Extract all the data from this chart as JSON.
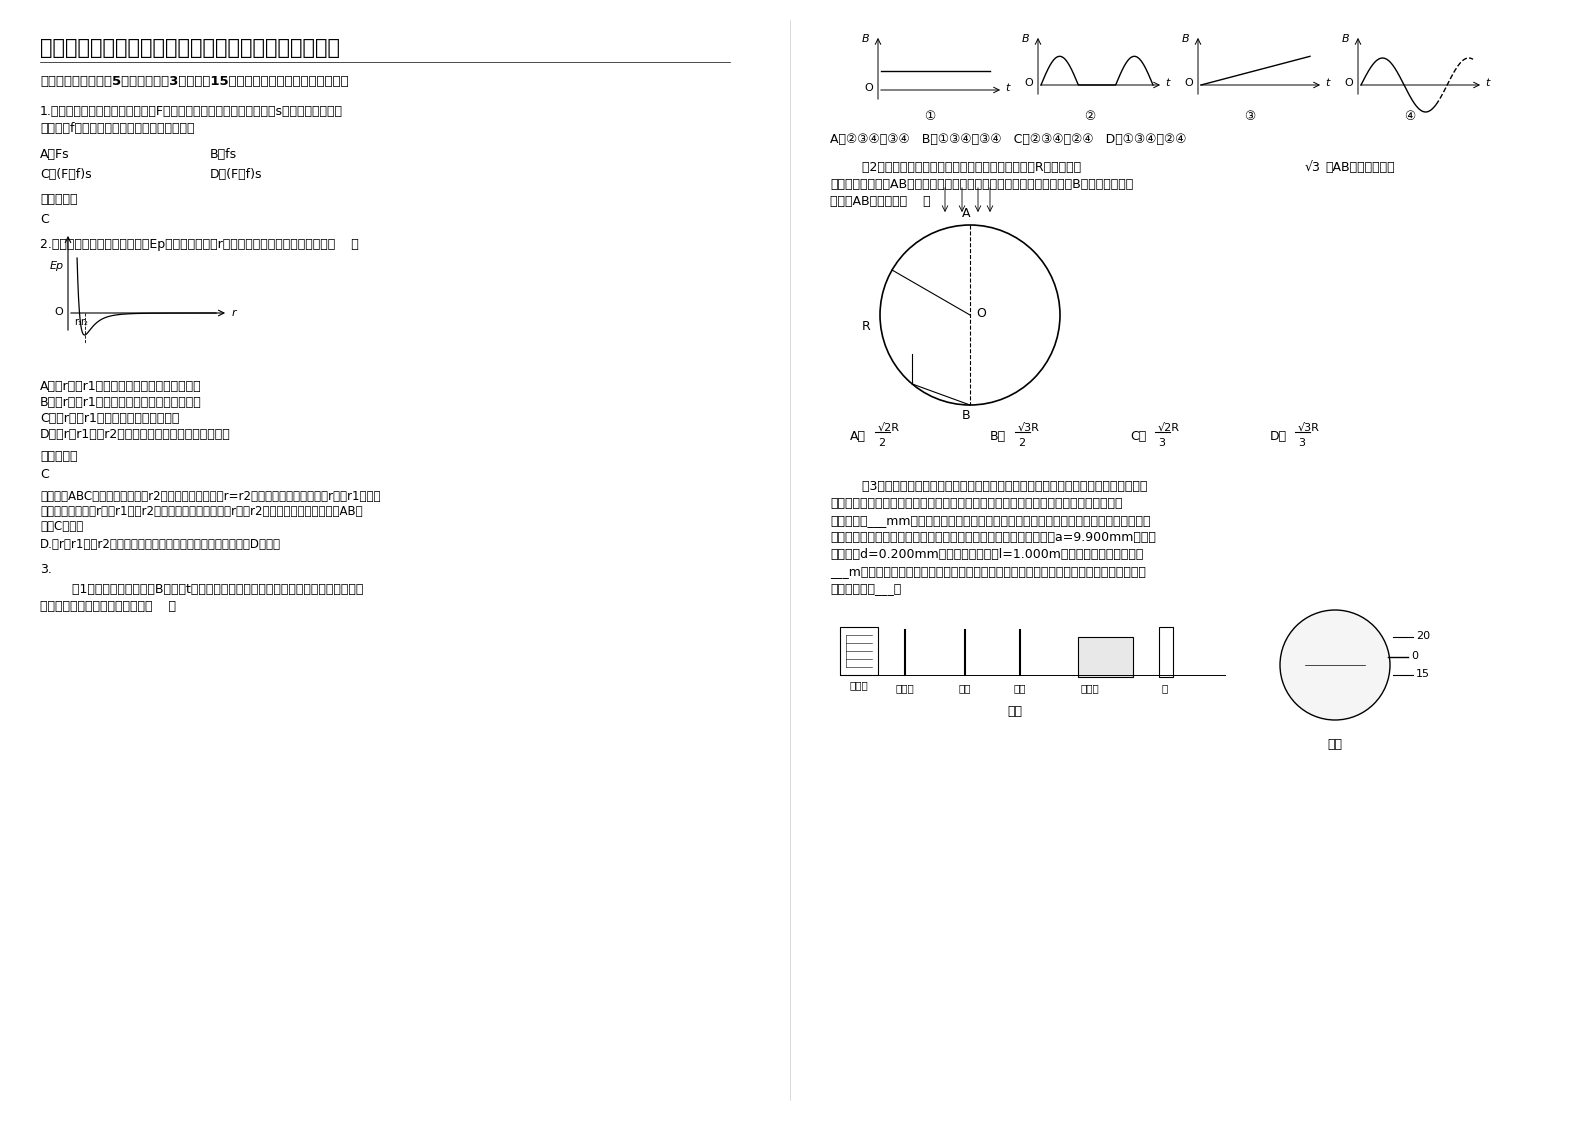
{
  "bg_color": "#ffffff",
  "title": "湖南省怀化市江口中学高二物理上学期期末试卷含解析",
  "section1": "一、选择题：本题共5小题，每小题3分，共计15分．每小题只有一个选项符合题意",
  "q1_text1": "1.水平地面上的物块，在水平恒力F的作用下由静止开始运动一段距离s，物块所受摩擦力",
  "q1_text2": "的大小为f，则物块在该过程中动能的增加量为",
  "q1_a": "A．Fs",
  "q1_b": "B．fs",
  "q1_c": "C．(F－f)s",
  "q1_d": "D．(F＋f)s",
  "ref_ans": "参考答案：",
  "q1_ans": "C",
  "q2_text": "2.如图所示为两分子系统的势能Ep与两分子间距离r的关系曲线，下列说法正确的是（    ）",
  "q2_a": "A．当r大于r1时，分子间的作用力表现为斥力",
  "q2_b": "B．当r小于r1时，分子间的作用力表现为引力",
  "q2_c": "C．当r等于r1时，分子间的作用力为零",
  "q2_d": "D．在r由r1变到r2的过程中，分子间的作用力做负功",
  "q2_ans": "C",
  "detail1": "【详解】ABC、分子间距离等于r2时分子势能最小，当r=r2时分子间作用力为零，当r小于r1时分子",
  "detail2": "力表现为斥力；当r大于r1小于r2时分子力表现为斥力；当r大于r2时分子力表现为引力，故AB错",
  "detail3": "误，C正确。",
  "detail4": "D.在r由r1变到r2的过程中，分子间为斥力，分子力做正功，故D错误。",
  "q3_num": "3.",
  "q3_1_text1": "        （1）磁场的磁感应强度B随时间t变化的四种情况如图所示，其中能产生电场的磁场和",
  "q3_1_text2": "能产生持续电磁波的磁场分别为（    ）",
  "bt_ans": "A．②③④、③④   B．①③④、③④   C．②③④、②④   D．①③④、②④",
  "q3_2_text1": "        （2）如图所示是一个透明圆柱的横截面，其半径为R，折射率是",
  "q3_2_text1b": "，AB是一条直径。",
  "q3_2_text2": "今有一束平行光沿AB方向射向圆柱体。若一条入射光线经折射后恰经过B点，则这条入射",
  "q3_2_text3": "光线到AB的距离为（    ）",
  "q3_2_ans": "A．  √2R/2        B．  √3R/2        C．  √2R/3        D．  √3R/3",
  "q3_3_text1": "        （3）在用双缝干涉测光的波长的实验中，所用实验装置如图甲所示，调节分划板的位",
  "q3_3_text2": "置，使分划板中心刻线对齐某亮条纹（将其记为第零条）的中心，如图乙所示，此时手轮",
  "q3_3_text3": "上的读数为___mm；转动手轮，使分划线向右侧移动到第四条亮条纹的中心位置，读出手轮",
  "q3_3_text4": "上的读数，由两次读数算出第一条亮条纹到第四条亮条纹之间的距离a=9.900mm，又知",
  "q3_3_text5": "双缝间距d=0.200mm，双缝到屏的距离l=1.000m，则对应的光波的波长为",
  "q3_3_text6": "___m。如果用上述装置测量氦氖激光器发出激光的波长，则图中除去光源以外，其他不必要",
  "q3_3_text7": "的器材元件有___。",
  "fig_jia": "图甲",
  "fig_yi": "图乙",
  "labels_apparatus": [
    "白炽灯",
    "滤光片",
    "单缝",
    "双缝",
    "遮光筒",
    "屏"
  ]
}
